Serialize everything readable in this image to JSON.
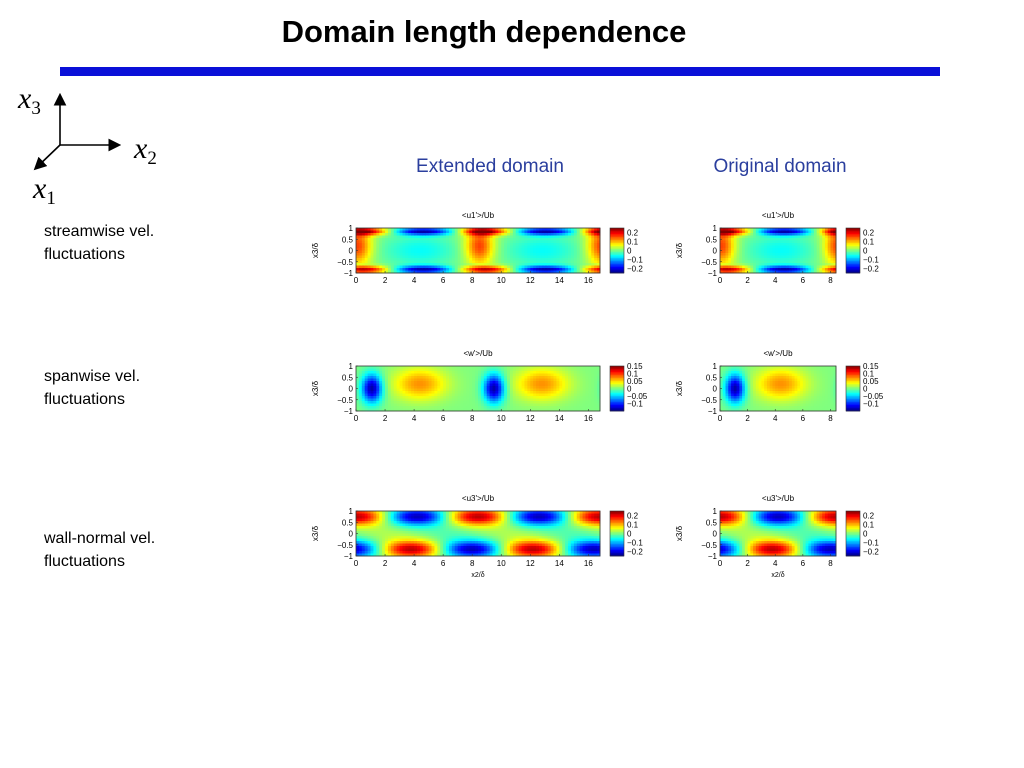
{
  "slide": {
    "title": "Domain length dependence",
    "rule_color": "#0a10d8",
    "coord_axes": {
      "x1": "x",
      "x1_sub": "1",
      "x2": "x",
      "x2_sub": "2",
      "x3": "x",
      "x3_sub": "3"
    }
  },
  "columns": {
    "extended_label": "Extended domain",
    "original_label": "Original domain",
    "color": "#2b3f9e"
  },
  "rows": [
    {
      "label_line1": "streamwise vel.",
      "label_line2": "fluctuations"
    },
    {
      "label_line1": "spanwise vel.",
      "label_line2": "fluctuations"
    },
    {
      "label_line1": "wall-normal vel.",
      "label_line2": "fluctuations"
    }
  ],
  "chart_data": [
    {
      "type": "heatmap",
      "panel": "extended-u1",
      "title": "<u1'>/Ub",
      "ylabel": "x3/δ",
      "xlabel": "",
      "xlim": [
        0,
        16.8
      ],
      "ylim": [
        -1,
        1
      ],
      "xticks": [
        "0",
        "2",
        "4",
        "6",
        "8",
        "10",
        "12",
        "14",
        "16"
      ],
      "yticks": [
        "1",
        "0.5",
        "0",
        "−0.5",
        "−1"
      ],
      "colorbar_ticks": [
        "0.2",
        "0.1",
        "0",
        "−0.1",
        "−0.2"
      ],
      "clim": [
        -0.25,
        0.25
      ],
      "field": "streamwise"
    },
    {
      "type": "heatmap",
      "panel": "original-u1",
      "title": "<u1'>/Ub",
      "ylabel": "x3/δ",
      "xlabel": "",
      "xlim": [
        0,
        8.4
      ],
      "ylim": [
        -1,
        1
      ],
      "xticks": [
        "0",
        "2",
        "4",
        "6",
        "8"
      ],
      "yticks": [
        "1",
        "0.5",
        "0",
        "−0.5",
        "−1"
      ],
      "colorbar_ticks": [
        "0.2",
        "0.1",
        "0",
        "−0.1",
        "−0.2"
      ],
      "clim": [
        -0.25,
        0.25
      ],
      "field": "streamwise"
    },
    {
      "type": "heatmap",
      "panel": "extended-w",
      "title": "<w'>/Ub",
      "ylabel": "x3/δ",
      "xlabel": "",
      "xlim": [
        0,
        16.8
      ],
      "ylim": [
        -1,
        1
      ],
      "xticks": [
        "0",
        "2",
        "4",
        "6",
        "8",
        "10",
        "12",
        "14",
        "16"
      ],
      "yticks": [
        "1",
        "0.5",
        "0",
        "−0.5",
        "−1"
      ],
      "colorbar_ticks": [
        "0.15",
        "0.1",
        "0.05",
        "0",
        "−0.05",
        "−0.1"
      ],
      "clim": [
        -0.15,
        0.15
      ],
      "field": "spanwise"
    },
    {
      "type": "heatmap",
      "panel": "original-w",
      "title": "<w'>/Ub",
      "ylabel": "x3/δ",
      "xlabel": "",
      "xlim": [
        0,
        8.4
      ],
      "ylim": [
        -1,
        1
      ],
      "xticks": [
        "0",
        "2",
        "4",
        "6",
        "8"
      ],
      "yticks": [
        "1",
        "0.5",
        "0",
        "−0.5",
        "−1"
      ],
      "colorbar_ticks": [
        "0.15",
        "0.1",
        "0.05",
        "0",
        "−0.05",
        "−0.1"
      ],
      "clim": [
        -0.15,
        0.15
      ],
      "field": "spanwise"
    },
    {
      "type": "heatmap",
      "panel": "extended-u3",
      "title": "<u3'>/Ub",
      "ylabel": "x3/δ",
      "xlabel": "x2/δ",
      "xlim": [
        0,
        16.8
      ],
      "ylim": [
        -1,
        1
      ],
      "xticks": [
        "0",
        "2",
        "4",
        "6",
        "8",
        "10",
        "12",
        "14",
        "16"
      ],
      "yticks": [
        "1",
        "0.5",
        "0",
        "−0.5",
        "−1"
      ],
      "colorbar_ticks": [
        "0.2",
        "0.1",
        "0",
        "−0.1",
        "−0.2"
      ],
      "clim": [
        -0.25,
        0.25
      ],
      "field": "wallnormal"
    },
    {
      "type": "heatmap",
      "panel": "original-u3",
      "title": "<u3'>/Ub",
      "ylabel": "x3/δ",
      "xlabel": "x2/δ",
      "xlim": [
        0,
        8.4
      ],
      "ylim": [
        -1,
        1
      ],
      "xticks": [
        "0",
        "2",
        "4",
        "6",
        "8"
      ],
      "yticks": [
        "1",
        "0.5",
        "0",
        "−0.5",
        "−1"
      ],
      "colorbar_ticks": [
        "0.2",
        "0.1",
        "0",
        "−0.1",
        "−0.2"
      ],
      "clim": [
        -0.25,
        0.25
      ],
      "field": "wallnormal"
    }
  ]
}
